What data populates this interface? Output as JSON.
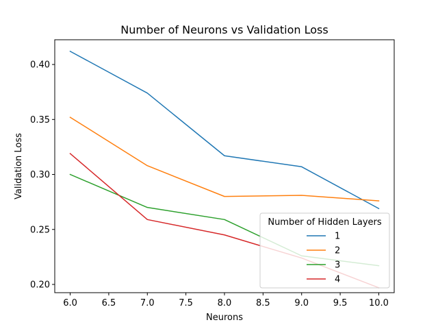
{
  "chart_data": {
    "type": "line",
    "title": "Number of Neurons vs Validation Loss",
    "xlabel": "Neurons",
    "ylabel": "Validation Loss",
    "xlim": [
      5.8,
      10.2
    ],
    "ylim": [
      0.1925,
      0.4225
    ],
    "xticks": [
      6.0,
      6.5,
      7.0,
      7.5,
      8.0,
      8.5,
      9.0,
      9.5,
      10.0
    ],
    "xtick_labels": [
      "6.0",
      "6.5",
      "7.0",
      "7.5",
      "8.0",
      "8.5",
      "9.0",
      "9.5",
      "10.0"
    ],
    "yticks": [
      0.2,
      0.25,
      0.3,
      0.35,
      0.4
    ],
    "ytick_labels": [
      "0.20",
      "0.25",
      "0.30",
      "0.35",
      "0.40"
    ],
    "grid": false,
    "legend": {
      "title": "Number of Hidden Layers",
      "placement": "lower-right"
    },
    "x": [
      6,
      7,
      8,
      9,
      10
    ],
    "series": [
      {
        "name": "1",
        "color": "#1f77b4",
        "values": [
          0.412,
          0.374,
          0.317,
          0.307,
          0.269
        ]
      },
      {
        "name": "2",
        "color": "#ff7f0e",
        "values": [
          0.352,
          0.308,
          0.28,
          0.281,
          0.276
        ]
      },
      {
        "name": "3",
        "color": "#2ca02c",
        "values": [
          0.3,
          0.27,
          0.259,
          0.226,
          0.217
        ]
      },
      {
        "name": "4",
        "color": "#d62728",
        "values": [
          0.319,
          0.259,
          0.245,
          0.224,
          0.197
        ]
      }
    ]
  }
}
